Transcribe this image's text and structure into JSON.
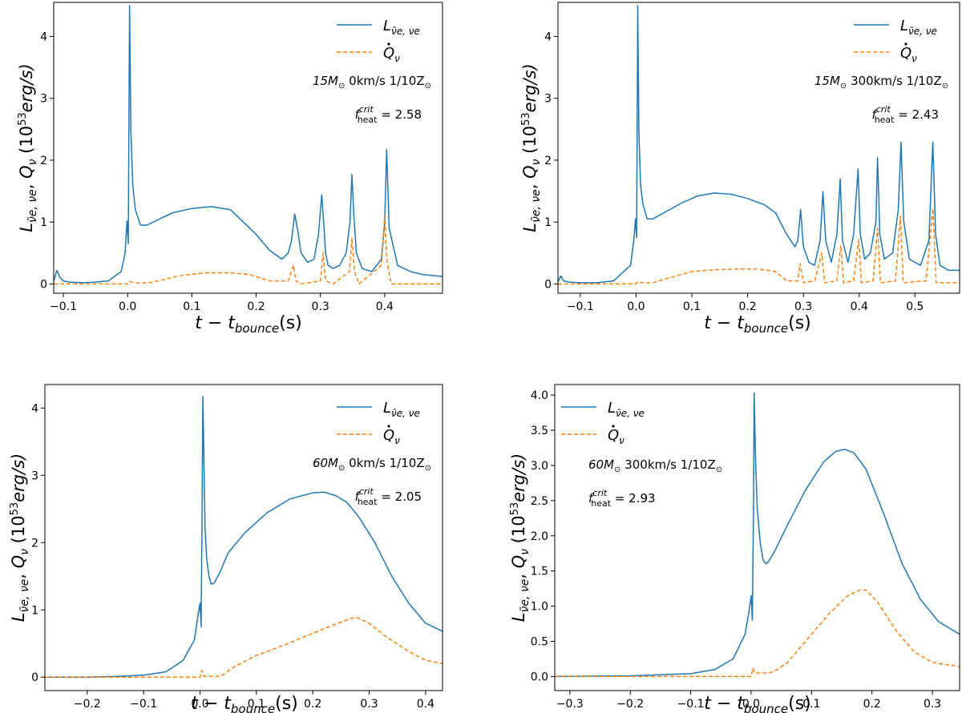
{
  "colors": {
    "luminosity": "#1f77b4",
    "heating": "#ff7f0e",
    "axis": "#000000"
  },
  "common": {
    "xlabel": "t − t",
    "xlabel_sub": "bounce",
    "xlabel_unit": "(s)",
    "ylabel_Q": "Q",
    "ylabel_Qsub": "ν",
    "ylabel_L": "L",
    "ylabel_Lsub": "ν̄e, νe",
    "ylabel_units_pre": "(10",
    "ylabel_units_exp": "53",
    "ylabel_units_post": "erg/s)",
    "legend_L_sub": "ν̄e, νe",
    "legend_Q_sub": "ν",
    "fheat_sub": "heat",
    "fheat_sup": "crit"
  },
  "chart_data": [
    {
      "type": "line",
      "xlim": [
        -0.115,
        0.49
      ],
      "ylim": [
        -0.15,
        4.55
      ],
      "xticks": [
        -0.1,
        0.0,
        0.1,
        0.2,
        0.3,
        0.4
      ],
      "xtick_labels": [
        "−0.1",
        "0.0",
        "0.1",
        "0.2",
        "0.3",
        "0.4"
      ],
      "yticks": [
        0,
        1,
        2,
        3,
        4
      ],
      "ytick_labels": [
        "0",
        "1",
        "2",
        "3",
        "4"
      ],
      "legend_position": "top-right",
      "annotation_mass": "15M",
      "annotation_rest": " 0km/s 1/10Z",
      "fheat_value": "= 2.58",
      "series": [
        {
          "name": "L",
          "style": "solid",
          "x": [
            -0.115,
            -0.11,
            -0.105,
            -0.1,
            -0.09,
            -0.07,
            -0.05,
            -0.03,
            -0.01,
            -0.004,
            -0.001,
            0.001,
            0.002,
            0.003,
            0.005,
            0.008,
            0.012,
            0.02,
            0.03,
            0.05,
            0.07,
            0.1,
            0.13,
            0.16,
            0.18,
            0.2,
            0.22,
            0.24,
            0.25,
            0.255,
            0.26,
            0.265,
            0.27,
            0.28,
            0.29,
            0.297,
            0.302,
            0.305,
            0.308,
            0.312,
            0.32,
            0.33,
            0.34,
            0.346,
            0.349,
            0.352,
            0.356,
            0.365,
            0.38,
            0.395,
            0.4,
            0.403,
            0.407,
            0.42,
            0.44,
            0.46,
            0.49
          ],
          "y": [
            0.05,
            0.22,
            0.1,
            0.05,
            0.03,
            0.02,
            0.03,
            0.05,
            0.2,
            0.5,
            1.02,
            0.65,
            2.5,
            4.5,
            2.5,
            1.6,
            1.2,
            0.95,
            0.95,
            1.05,
            1.15,
            1.22,
            1.25,
            1.2,
            1.0,
            0.8,
            0.55,
            0.4,
            0.5,
            0.7,
            1.13,
            0.85,
            0.5,
            0.35,
            0.4,
            0.8,
            1.44,
            1.0,
            0.5,
            0.3,
            0.25,
            0.3,
            0.5,
            1.0,
            1.77,
            1.1,
            0.5,
            0.25,
            0.2,
            0.4,
            1.0,
            2.17,
            0.9,
            0.3,
            0.2,
            0.15,
            0.12
          ]
        },
        {
          "name": "Q",
          "style": "dashed",
          "x": [
            -0.115,
            -0.05,
            0.0,
            0.003,
            0.01,
            0.02,
            0.04,
            0.08,
            0.12,
            0.16,
            0.19,
            0.22,
            0.25,
            0.258,
            0.262,
            0.27,
            0.3,
            0.304,
            0.308,
            0.32,
            0.345,
            0.349,
            0.353,
            0.36,
            0.395,
            0.4,
            0.403,
            0.41,
            0.44,
            0.49
          ],
          "y": [
            0.0,
            0.0,
            0.0,
            0.04,
            0.02,
            0.01,
            0.03,
            0.13,
            0.18,
            0.18,
            0.15,
            0.05,
            0.05,
            0.3,
            0.05,
            0.0,
            0.05,
            0.5,
            0.05,
            0.0,
            0.2,
            0.75,
            0.2,
            0.0,
            0.3,
            1.1,
            0.4,
            0.0,
            0.0,
            0.0
          ]
        }
      ]
    },
    {
      "type": "line",
      "xlim": [
        -0.14,
        0.58
      ],
      "ylim": [
        -0.15,
        4.55
      ],
      "xticks": [
        -0.1,
        0.0,
        0.1,
        0.2,
        0.3,
        0.4,
        0.5
      ],
      "xtick_labels": [
        "−0.1",
        "0.0",
        "0.1",
        "0.2",
        "0.3",
        "0.4",
        "0.5"
      ],
      "yticks": [
        0,
        1,
        2,
        3,
        4
      ],
      "ytick_labels": [
        "0",
        "1",
        "2",
        "3",
        "4"
      ],
      "legend_position": "top-right",
      "annotation_mass": "15M",
      "annotation_rest": " 300km/s 1/10Z",
      "fheat_value": "= 2.43",
      "series": [
        {
          "name": "L",
          "style": "solid",
          "x": [
            -0.14,
            -0.135,
            -0.13,
            -0.12,
            -0.1,
            -0.07,
            -0.04,
            -0.01,
            -0.004,
            -0.001,
            0.001,
            0.002,
            0.003,
            0.005,
            0.008,
            0.012,
            0.02,
            0.03,
            0.05,
            0.08,
            0.11,
            0.14,
            0.17,
            0.2,
            0.23,
            0.25,
            0.27,
            0.285,
            0.29,
            0.295,
            0.3,
            0.31,
            0.32,
            0.33,
            0.335,
            0.34,
            0.35,
            0.36,
            0.366,
            0.37,
            0.38,
            0.39,
            0.398,
            0.402,
            0.41,
            0.42,
            0.43,
            0.433,
            0.437,
            0.445,
            0.46,
            0.47,
            0.475,
            0.48,
            0.49,
            0.51,
            0.525,
            0.532,
            0.537,
            0.545,
            0.56,
            0.58
          ],
          "y": [
            0.03,
            0.13,
            0.05,
            0.03,
            0.02,
            0.02,
            0.05,
            0.3,
            0.7,
            1.05,
            0.75,
            2.5,
            4.5,
            2.5,
            1.6,
            1.3,
            1.05,
            1.05,
            1.15,
            1.3,
            1.42,
            1.47,
            1.45,
            1.38,
            1.28,
            1.15,
            0.8,
            0.6,
            0.7,
            1.2,
            0.6,
            0.35,
            0.3,
            0.7,
            1.49,
            0.7,
            0.35,
            0.8,
            1.7,
            0.7,
            0.35,
            0.8,
            1.86,
            0.8,
            0.4,
            0.5,
            1.0,
            2.04,
            0.8,
            0.4,
            0.5,
            1.2,
            2.29,
            1.0,
            0.4,
            0.3,
            0.7,
            2.29,
            0.8,
            0.3,
            0.22,
            0.22
          ]
        },
        {
          "name": "Q",
          "style": "dashed",
          "x": [
            -0.14,
            -0.05,
            0.0,
            0.003,
            0.01,
            0.03,
            0.06,
            0.1,
            0.14,
            0.18,
            0.22,
            0.25,
            0.27,
            0.29,
            0.294,
            0.3,
            0.32,
            0.333,
            0.338,
            0.36,
            0.367,
            0.372,
            0.39,
            0.399,
            0.404,
            0.425,
            0.433,
            0.438,
            0.465,
            0.474,
            0.479,
            0.52,
            0.532,
            0.538,
            0.55,
            0.58
          ],
          "y": [
            0.0,
            0.0,
            0.0,
            0.04,
            0.02,
            0.02,
            0.1,
            0.2,
            0.23,
            0.24,
            0.24,
            0.2,
            0.05,
            0.05,
            0.33,
            0.02,
            0.05,
            0.5,
            0.02,
            0.05,
            0.62,
            0.02,
            0.05,
            0.72,
            0.02,
            0.05,
            0.9,
            0.02,
            0.05,
            1.1,
            0.02,
            0.05,
            1.22,
            0.02,
            0.02,
            0.02
          ]
        }
      ]
    },
    {
      "type": "line",
      "xlim": [
        -0.275,
        0.43
      ],
      "ylim": [
        -0.2,
        4.35
      ],
      "xticks": [
        -0.2,
        -0.1,
        0.0,
        0.1,
        0.2,
        0.3,
        0.4
      ],
      "xtick_labels": [
        "−0.2",
        "−0.1",
        "0.0",
        "0.1",
        "0.2",
        "0.3",
        "0.4"
      ],
      "yticks": [
        0,
        1,
        2,
        3,
        4
      ],
      "ytick_labels": [
        "0",
        "1",
        "2",
        "3",
        "4"
      ],
      "legend_position": "top-right",
      "annotation_mass": "60M",
      "annotation_rest": " 0km/s 1/10Z",
      "fheat_value": "= 2.05",
      "series": [
        {
          "name": "L",
          "style": "solid",
          "x": [
            -0.275,
            -0.2,
            -0.15,
            -0.1,
            -0.06,
            -0.03,
            -0.01,
            -0.003,
            0.0,
            0.002,
            0.004,
            0.005,
            0.007,
            0.009,
            0.012,
            0.016,
            0.02,
            0.025,
            0.035,
            0.05,
            0.08,
            0.12,
            0.16,
            0.2,
            0.22,
            0.24,
            0.26,
            0.28,
            0.31,
            0.34,
            0.37,
            0.4,
            0.43
          ],
          "y": [
            0.0,
            0.0,
            0.01,
            0.03,
            0.08,
            0.25,
            0.55,
            0.95,
            1.1,
            0.75,
            2.8,
            4.17,
            3.2,
            2.2,
            1.75,
            1.5,
            1.38,
            1.4,
            1.55,
            1.85,
            2.15,
            2.45,
            2.65,
            2.74,
            2.75,
            2.7,
            2.6,
            2.4,
            2.0,
            1.5,
            1.1,
            0.8,
            0.68
          ]
        },
        {
          "name": "Q",
          "style": "dashed",
          "x": [
            -0.275,
            -0.1,
            0.0,
            0.003,
            0.006,
            0.01,
            0.03,
            0.04,
            0.06,
            0.1,
            0.15,
            0.2,
            0.25,
            0.27,
            0.28,
            0.3,
            0.33,
            0.37,
            0.4,
            0.43
          ],
          "y": [
            0.0,
            0.0,
            0.0,
            0.1,
            0.02,
            0.01,
            0.01,
            0.03,
            0.15,
            0.32,
            0.48,
            0.65,
            0.82,
            0.88,
            0.88,
            0.8,
            0.6,
            0.38,
            0.25,
            0.2
          ]
        }
      ]
    },
    {
      "type": "line",
      "xlim": [
        -0.325,
        0.345
      ],
      "ylim": [
        -0.2,
        4.15
      ],
      "xticks": [
        -0.3,
        -0.2,
        -0.1,
        0.0,
        0.1,
        0.2,
        0.3
      ],
      "xtick_labels": [
        "−0.3",
        "−0.2",
        "−0.1",
        "0.0",
        "0.1",
        "0.2",
        "0.3"
      ],
      "yticks": [
        0.0,
        0.5,
        1.0,
        1.5,
        2.0,
        2.5,
        3.0,
        3.5,
        4.0
      ],
      "ytick_labels": [
        "0.0",
        "0.5",
        "1.0",
        "1.5",
        "2.0",
        "2.5",
        "3.0",
        "3.5",
        "4.0"
      ],
      "legend_position": "top-left",
      "annotation_mass": "60M",
      "annotation_rest": " 300km/s 1/10Z",
      "fheat_value": "= 2.93",
      "series": [
        {
          "name": "L",
          "style": "solid",
          "x": [
            -0.325,
            -0.2,
            -0.1,
            -0.06,
            -0.03,
            -0.01,
            -0.003,
            0.0,
            0.002,
            0.004,
            0.005,
            0.007,
            0.01,
            0.015,
            0.02,
            0.025,
            0.03,
            0.04,
            0.06,
            0.09,
            0.12,
            0.14,
            0.155,
            0.17,
            0.19,
            0.22,
            0.25,
            0.28,
            0.31,
            0.345
          ],
          "y": [
            0.0,
            0.01,
            0.04,
            0.1,
            0.25,
            0.6,
            0.95,
            1.15,
            0.8,
            2.5,
            4.03,
            3.2,
            2.4,
            1.9,
            1.65,
            1.6,
            1.65,
            1.8,
            2.15,
            2.65,
            3.05,
            3.2,
            3.23,
            3.18,
            2.95,
            2.3,
            1.6,
            1.1,
            0.78,
            0.6
          ]
        },
        {
          "name": "Q",
          "style": "dashed",
          "x": [
            -0.325,
            -0.1,
            0.0,
            0.003,
            0.006,
            0.01,
            0.03,
            0.04,
            0.06,
            0.08,
            0.1,
            0.13,
            0.16,
            0.18,
            0.19,
            0.21,
            0.24,
            0.27,
            0.3,
            0.345
          ],
          "y": [
            0.0,
            0.0,
            0.0,
            0.12,
            0.05,
            0.05,
            0.05,
            0.08,
            0.2,
            0.4,
            0.6,
            0.9,
            1.15,
            1.23,
            1.23,
            1.05,
            0.65,
            0.35,
            0.2,
            0.14
          ]
        }
      ]
    }
  ]
}
